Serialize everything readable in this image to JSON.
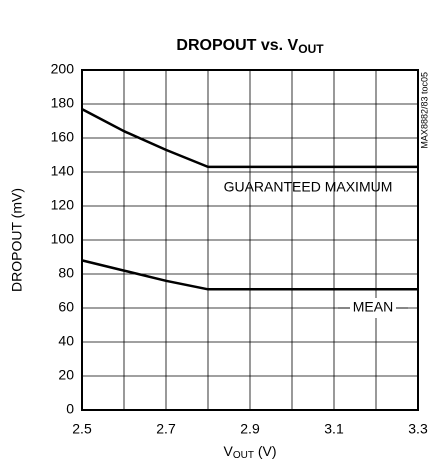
{
  "chart_data": {
    "type": "line",
    "title": {
      "main": "DROPOUT vs. V",
      "sub": "OUT"
    },
    "xlabel": {
      "main": "V",
      "sub": "OUT",
      "unit": " (V)"
    },
    "ylabel": "DROPOUT (mV)",
    "note": "MAX8882/83 toc05",
    "x": [
      2.5,
      2.6,
      2.7,
      2.8,
      3.3
    ],
    "series": [
      {
        "name": "GUARANTEED MAXIMUM",
        "color": "#000000",
        "values": [
          177,
          164,
          153,
          143,
          143
        ]
      },
      {
        "name": "MEAN",
        "color": "#000000",
        "values": [
          88,
          82,
          76,
          71,
          71
        ]
      }
    ],
    "xlim": [
      2.5,
      3.3
    ],
    "xticks": [
      2.5,
      2.7,
      2.9,
      3.1,
      3.3
    ],
    "xminor": [
      2.6,
      2.8,
      3.0,
      3.2
    ],
    "ylim": [
      0,
      200
    ],
    "yticks": [
      0,
      20,
      40,
      60,
      80,
      100,
      120,
      140,
      160,
      180,
      200
    ],
    "grid": true
  }
}
